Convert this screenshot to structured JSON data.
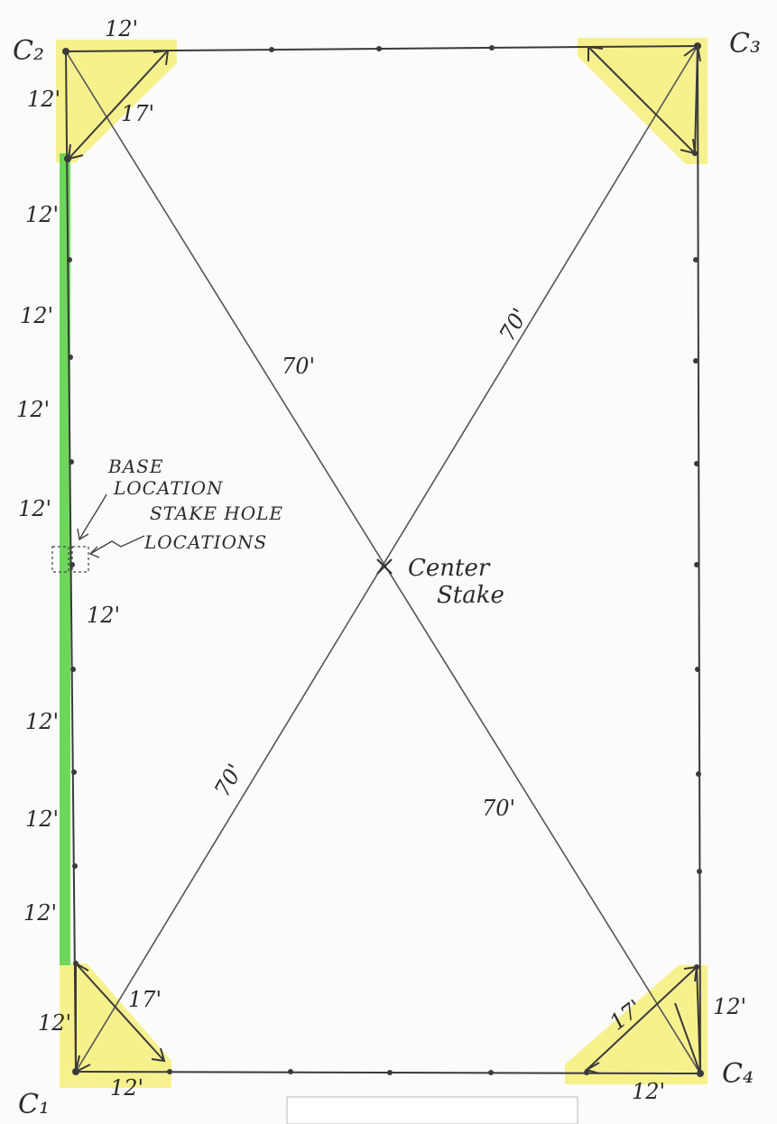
{
  "corners": {
    "c1": "C₁",
    "c2": "C₂",
    "c3": "C₃",
    "c4": "C₄"
  },
  "diagonals": {
    "c2_to_center": "70'",
    "c3_to_center": "70'",
    "c1_to_center": "70'",
    "c4_to_center": "70'"
  },
  "corner_triangles": {
    "c2_top_leg": "12'",
    "c2_side_leg": "12'",
    "c2_hypotenuse": "17'",
    "c1_side_leg": "12'",
    "c1_bottom_leg": "12'",
    "c1_hypotenuse": "17'",
    "c4_side_leg": "12'",
    "c4_bottom_leg": "12'",
    "c4_hypotenuse": "17'"
  },
  "left_side_segments": [
    "12'",
    "12'",
    "12'",
    "12'",
    "12'",
    "12'",
    "12'",
    "12'"
  ],
  "annotations": {
    "base_location_line1": "BASE",
    "base_location_line2": "LOCATION",
    "stake_hole_line1": "STAKE HOLE",
    "stake_hole_line2": "LOCATIONS",
    "center_line1": "Center",
    "center_line2": "Stake"
  },
  "colors": {
    "ink": "#3a3a3a",
    "highlight_yellow": "#f4ee7a",
    "highlight_green": "#5fd14a"
  }
}
